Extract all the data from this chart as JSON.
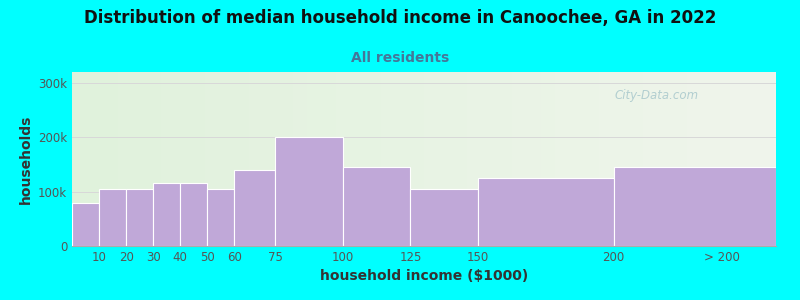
{
  "title": "Distribution of median household income in Canoochee, GA in 2022",
  "subtitle": "All residents",
  "xlabel": "household income ($1000)",
  "ylabel": "households",
  "background_color": "#00FFFF",
  "bar_color": "#C0A8D8",
  "bar_edge_color": "#ffffff",
  "left_edges": [
    0,
    10,
    20,
    30,
    40,
    50,
    60,
    75,
    100,
    125,
    150,
    200
  ],
  "widths": [
    10,
    10,
    10,
    10,
    10,
    10,
    15,
    25,
    25,
    25,
    50,
    60
  ],
  "values": [
    80000,
    105000,
    105000,
    115000,
    115000,
    105000,
    140000,
    200000,
    145000,
    105000,
    125000,
    145000
  ],
  "ylim": [
    0,
    320000
  ],
  "yticks": [
    0,
    100000,
    200000,
    300000
  ],
  "ytick_labels": [
    "0",
    "100k",
    "200k",
    "300k"
  ],
  "xtick_positions": [
    10,
    20,
    30,
    40,
    50,
    60,
    75,
    100,
    125,
    150,
    200,
    240
  ],
  "xtick_labels": [
    "10",
    "20",
    "30",
    "40",
    "50",
    "60",
    "75",
    "100",
    "125",
    "150",
    "200",
    "> 200"
  ],
  "xlim": [
    0,
    260
  ],
  "title_fontsize": 12,
  "subtitle_fontsize": 10,
  "axis_label_fontsize": 10,
  "tick_fontsize": 8.5,
  "watermark_text": "City-Data.com",
  "watermark_color": "#a8c8cc",
  "grid_color": "#d8d8d8",
  "subtitle_color": "#447799",
  "title_color": "#111111",
  "tick_color": "#555555",
  "axis_label_color": "#333333"
}
